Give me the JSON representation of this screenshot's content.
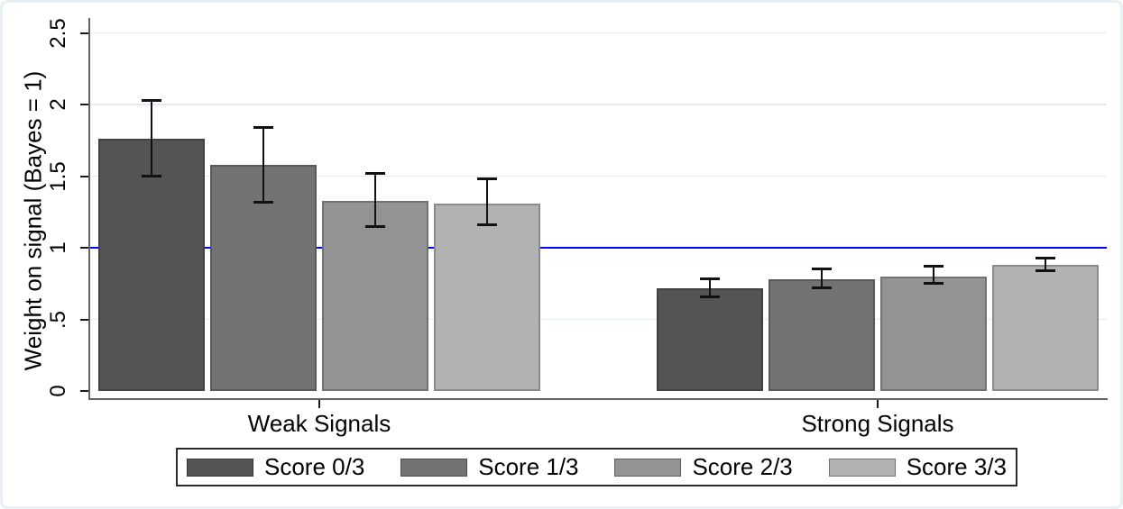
{
  "chart_data": {
    "type": "bar",
    "title": "",
    "ylabel": "Weight on signal (Bayes = 1)",
    "ylim": [
      0,
      2.5
    ],
    "yticks": {
      "values": [
        0,
        0.5,
        1,
        1.5,
        2,
        2.5
      ],
      "labels": [
        "0",
        ".5",
        "1",
        "1.5",
        "2",
        "2.5"
      ]
    },
    "categories": [
      "Weak Signals",
      "Strong Signals"
    ],
    "series": [
      {
        "name": "Score 0/3",
        "color": "#545454",
        "values": [
          1.76,
          0.72
        ],
        "ci_low": [
          1.5,
          0.66
        ],
        "ci_high": [
          2.03,
          0.78
        ]
      },
      {
        "name": "Score 1/3",
        "color": "#737373",
        "values": [
          1.58,
          0.78
        ],
        "ci_low": [
          1.32,
          0.72
        ],
        "ci_high": [
          1.84,
          0.85
        ]
      },
      {
        "name": "Score 2/3",
        "color": "#939393",
        "values": [
          1.33,
          0.8
        ],
        "ci_low": [
          1.15,
          0.75
        ],
        "ci_high": [
          1.52,
          0.87
        ]
      },
      {
        "name": "Score 3/3",
        "color": "#b2b2b2",
        "values": [
          1.31,
          0.88
        ],
        "ci_low": [
          1.16,
          0.84
        ],
        "ci_high": [
          1.48,
          0.93
        ]
      }
    ],
    "reference_line": {
      "value": 1,
      "color": "#0000ff",
      "label": "Bayes = 1"
    },
    "grid": true,
    "error_bars": true,
    "legend_position": "bottom"
  },
  "colors": {
    "background": "#ffffff",
    "frame": "#e9f0f3",
    "grid": "#e3ecf5",
    "axis": "#636363",
    "tick": "#1a1a1a",
    "error_bar": "#111111",
    "text": "#000000",
    "legend_border": "#2b2b2b"
  }
}
